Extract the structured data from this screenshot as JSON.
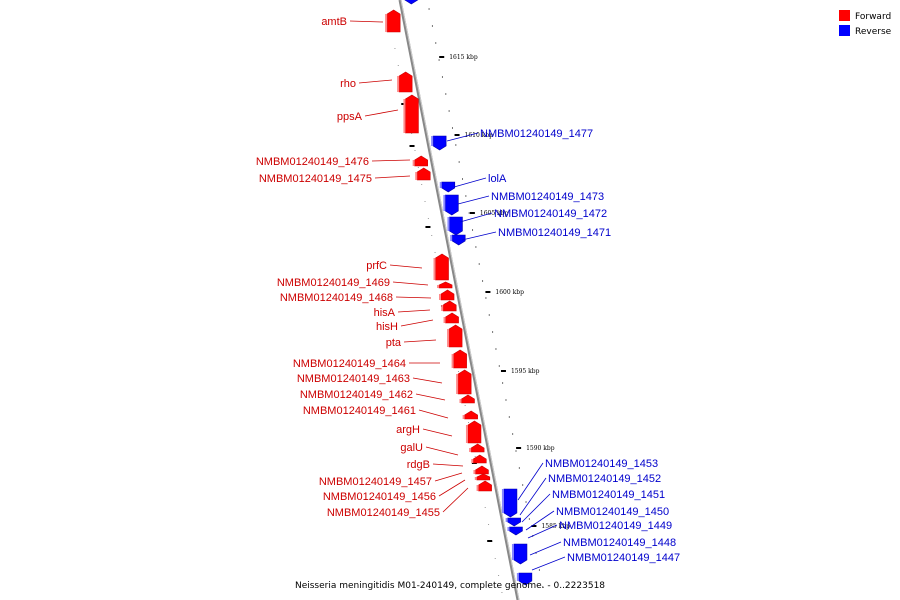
{
  "legend": {
    "items": [
      {
        "label": "Forward",
        "color": "#ff0000"
      },
      {
        "label": "Reverse",
        "color": "#0000ff"
      }
    ]
  },
  "caption": "Neisseria meningitidis M01-240149, complete genome. - 0..2223518",
  "chart_data": {
    "type": "diagram",
    "ticks": [
      "1615 kbp",
      "1610 kbp",
      "1605 kbp",
      "1600 kbp",
      "1595 kbp",
      "1590 kbp",
      "1585 kbp"
    ],
    "forward_genes": [
      "amtB",
      "rho",
      "ppsA",
      "NMBM01240149_1476",
      "NMBM01240149_1475",
      "prfC",
      "NMBM01240149_1469",
      "NMBM01240149_1468",
      "hisA",
      "hisH",
      "pta",
      "NMBM01240149_1464",
      "NMBM01240149_1463",
      "NMBM01240149_1462",
      "NMBM01240149_1461",
      "argH",
      "galU",
      "rdgB",
      "NMBM01240149_1457",
      "NMBM01240149_1456",
      "NMBM01240149_1455"
    ],
    "reverse_genes": [
      "NMBM01240149_1477",
      "lolA",
      "NMBM01240149_1473",
      "NMBM01240149_1472",
      "NMBM01240149_1471",
      "NMBM01240149_1453",
      "NMBM01240149_1452",
      "NMBM01240149_1451",
      "NMBM01240149_1450",
      "NMBM01240149_1449",
      "NMBM01240149_1448",
      "NMBM01240149_1447"
    ]
  }
}
